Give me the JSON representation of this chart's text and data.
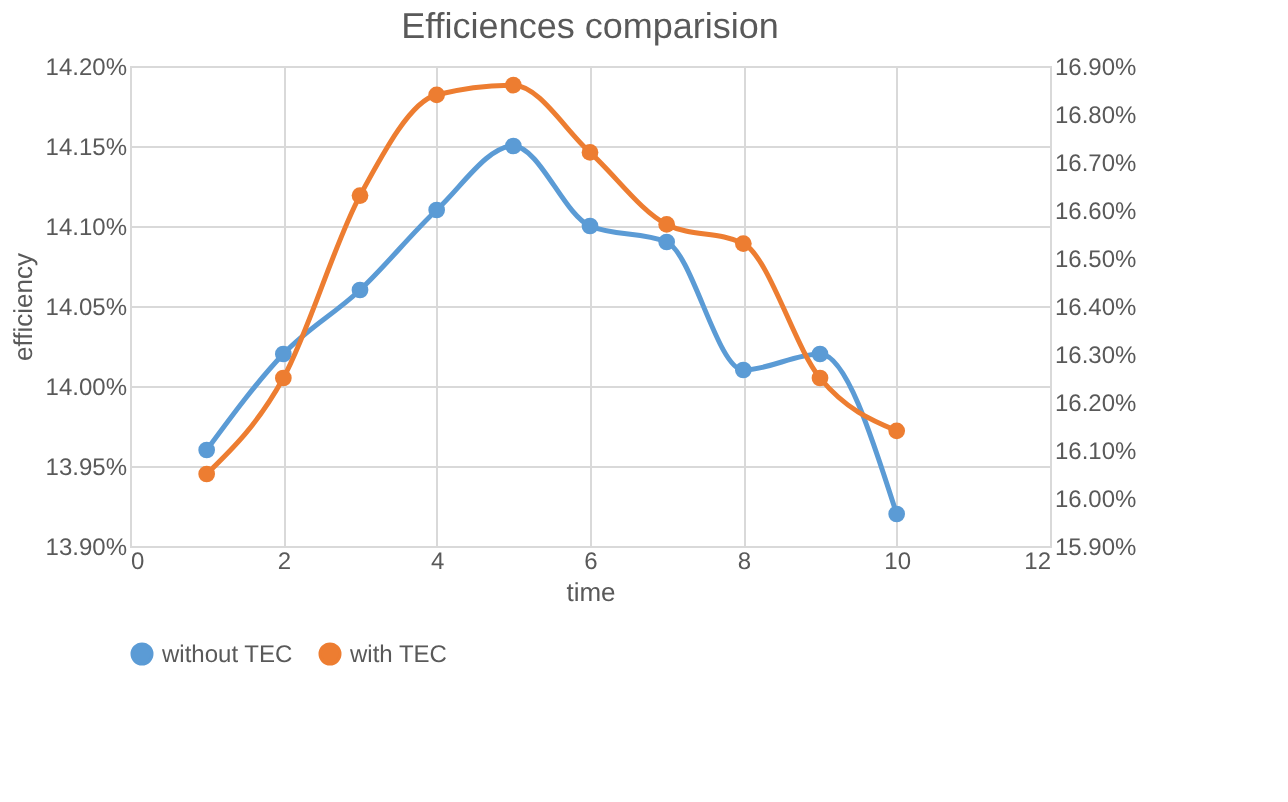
{
  "chart_data": {
    "type": "line",
    "title": "Efficiences comparision",
    "xlabel": "time",
    "ylabel": "efficiency",
    "x": [
      1,
      2,
      3,
      4,
      5,
      6,
      7,
      8,
      9,
      10
    ],
    "series": [
      {
        "name": "without TEC",
        "color": "#5b9bd5",
        "values": [
          13.96,
          14.02,
          14.06,
          14.11,
          14.15,
          14.1,
          14.09,
          14.01,
          14.02,
          13.92
        ]
      },
      {
        "name": "with TEC",
        "color": "#ed7d31",
        "axis": "y2",
        "values": [
          16.05,
          16.25,
          16.63,
          16.84,
          16.86,
          16.72,
          16.57,
          16.53,
          16.25,
          16.14
        ]
      }
    ],
    "xlim": [
      0,
      12
    ],
    "xticks": [
      0,
      2,
      4,
      6,
      8,
      10,
      12
    ],
    "ylim": [
      13.9,
      14.2
    ],
    "yticks": [
      {
        "value": 13.9,
        "label": "13.90%"
      },
      {
        "value": 13.95,
        "label": "13.95%"
      },
      {
        "value": 14.0,
        "label": "14.00%"
      },
      {
        "value": 14.05,
        "label": "14.05%"
      },
      {
        "value": 14.1,
        "label": "14.10%"
      },
      {
        "value": 14.15,
        "label": "14.15%"
      },
      {
        "value": 14.2,
        "label": "14.20%"
      }
    ],
    "y2lim": [
      15.9,
      16.9
    ],
    "y2ticks": [
      {
        "value": 15.9,
        "label": "15.90%"
      },
      {
        "value": 16.0,
        "label": "16.00%"
      },
      {
        "value": 16.1,
        "label": "16.10%"
      },
      {
        "value": 16.2,
        "label": "16.20%"
      },
      {
        "value": 16.3,
        "label": "16.30%"
      },
      {
        "value": 16.4,
        "label": "16.40%"
      },
      {
        "value": 16.5,
        "label": "16.50%"
      },
      {
        "value": 16.6,
        "label": "16.60%"
      },
      {
        "value": 16.7,
        "label": "16.70%"
      },
      {
        "value": 16.8,
        "label": "16.80%"
      },
      {
        "value": 16.9,
        "label": "16.90%"
      }
    ],
    "grid": true,
    "legend": "bottom",
    "marker": "circle",
    "line_style": "solid"
  }
}
